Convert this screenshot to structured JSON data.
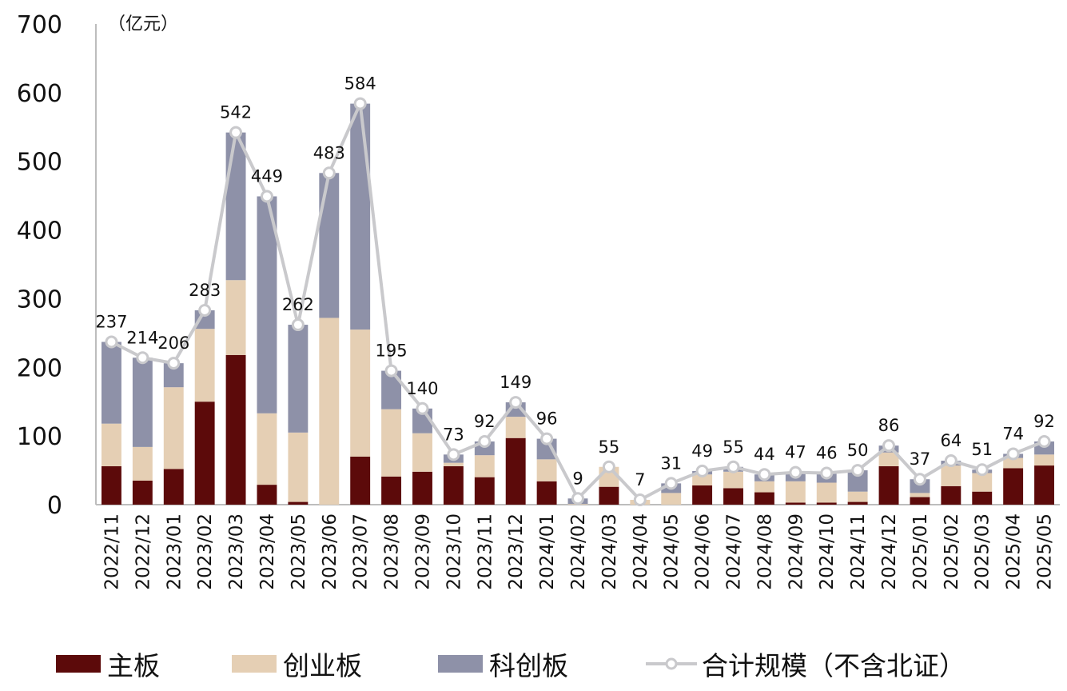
{
  "chart_data": {
    "type": "bar",
    "stacked": true,
    "unit_label": "（亿元）",
    "title": "",
    "xlabel": "",
    "ylabel": "",
    "ylim": [
      0,
      700
    ],
    "yticks": [
      0,
      100,
      200,
      300,
      400,
      500,
      600,
      700
    ],
    "grid": false,
    "legend_position": "bottom",
    "categories": [
      "2022/11",
      "2022/12",
      "2023/01",
      "2023/02",
      "2023/03",
      "2023/04",
      "2023/05",
      "2023/06",
      "2023/07",
      "2023/08",
      "2023/09",
      "2023/10",
      "2023/11",
      "2023/12",
      "2024/01",
      "2024/02",
      "2024/03",
      "2024/04",
      "2024/05",
      "2024/06",
      "2024/07",
      "2024/08",
      "2024/09",
      "2024/10",
      "2024/11",
      "2024/12",
      "2025/01",
      "2025/02",
      "2025/03",
      "2025/04",
      "2025/05"
    ],
    "series": [
      {
        "name": "主板",
        "type": "bar",
        "color": "#5c0a0a",
        "values": [
          56,
          35,
          52,
          150,
          218,
          29,
          4,
          0,
          70,
          41,
          48,
          56,
          40,
          97,
          34,
          0,
          26,
          0,
          0,
          28,
          24,
          18,
          3,
          3,
          4,
          56,
          11,
          27,
          19,
          53,
          57
        ]
      },
      {
        "name": "创业板",
        "type": "bar",
        "color": "#e5cfb4",
        "values": [
          62,
          49,
          119,
          106,
          109,
          104,
          101,
          272,
          185,
          98,
          56,
          5,
          32,
          31,
          32,
          1,
          29,
          7,
          17,
          16,
          24,
          16,
          31,
          29,
          15,
          20,
          6,
          30,
          27,
          15,
          16
        ]
      },
      {
        "name": "科创板",
        "type": "bar",
        "color": "#8e91a8",
        "values": [
          119,
          130,
          35,
          27,
          215,
          316,
          157,
          211,
          329,
          56,
          36,
          12,
          20,
          21,
          30,
          8,
          0,
          0,
          14,
          5,
          7,
          10,
          13,
          14,
          31,
          10,
          20,
          7,
          5,
          6,
          19
        ]
      },
      {
        "name": "合计规模（不含北证）",
        "type": "line",
        "color": "#c9c9cc",
        "values": [
          237,
          214,
          206,
          283,
          542,
          449,
          262,
          483,
          584,
          195,
          140,
          73,
          92,
          149,
          96,
          9,
          55,
          7,
          31,
          49,
          55,
          44,
          47,
          46,
          50,
          86,
          37,
          64,
          51,
          74,
          92
        ],
        "data_labels": [
          "237",
          "214",
          "206",
          "283",
          "542",
          "449",
          "262",
          "483",
          "584",
          "195",
          "140",
          "73",
          "92",
          "149",
          "96",
          "9",
          "55",
          "7",
          "31",
          "49",
          "55",
          "44",
          "47",
          "46",
          "50",
          "86",
          "37",
          "64",
          "51",
          "74",
          "92"
        ]
      }
    ]
  },
  "legend": {
    "main_board": "主板",
    "chinext": "创业板",
    "star_market": "科创板",
    "total": "合计规模（不含北证）"
  }
}
